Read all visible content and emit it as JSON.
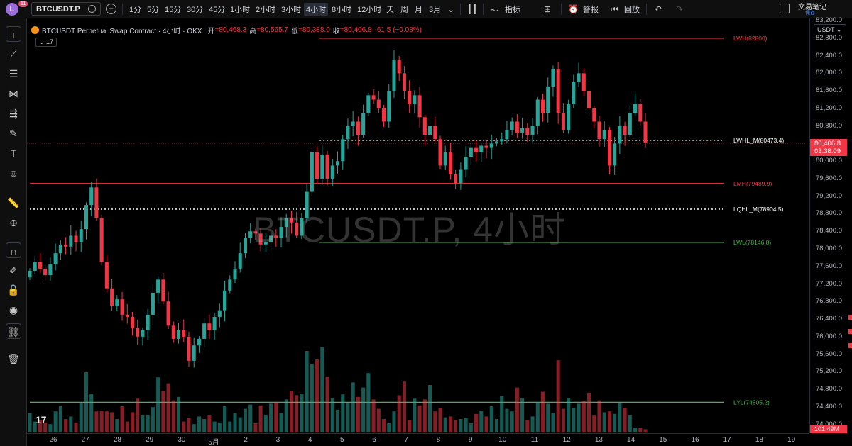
{
  "toolbar": {
    "avatar_letter": "L",
    "notification_count": "11",
    "symbol": "BTCUSDT.P",
    "timeframes": [
      "1分",
      "5分",
      "15分",
      "30分",
      "45分",
      "1小时",
      "2小时",
      "3小时",
      "4小时",
      "8小时",
      "12小时",
      "天",
      "周",
      "月",
      "3月"
    ],
    "active_timeframe": "4小时",
    "indicators_label": "指标",
    "alert_label": "警报",
    "replay_label": "回放",
    "notes_label": "交易笔记",
    "notes_sub": "保存"
  },
  "legend": {
    "title": "BTCUSDT Perpetual Swap Contract · 4小时 · OKX",
    "open_label": "开",
    "open": "=80,468.3",
    "high_label": "高",
    "high": "=80,565.7",
    "low_label": "低",
    "low": "=80,388.0",
    "close_label": "收",
    "close": "=80,406.8",
    "change": "-61.5 (−0.08%)",
    "indicator_count": "17"
  },
  "watermark": "BTCUSDT.P, 4小时",
  "currency": "USDT",
  "current_price": "80,406.8",
  "countdown": "03:38:09",
  "volume_value": "101.49M",
  "colors": {
    "up": "#26a69a",
    "down": "#f23645",
    "level_red": "#f23645",
    "level_green": "#4caf50"
  },
  "price_ticks": [
    "83,200.0",
    "82,800.0",
    "82,400.0",
    "82,000.0",
    "81,600.0",
    "81,200.0",
    "80,800.0",
    "80,000.0",
    "79,600.0",
    "79,200.0",
    "78,800.0",
    "78,400.0",
    "78,000.0",
    "77,600.0",
    "77,200.0",
    "76,800.0",
    "76,400.0",
    "76,000.0",
    "75,600.0",
    "75,200.0",
    "74,800.0",
    "74,400.0",
    "74,000.0"
  ],
  "time_ticks": [
    "26",
    "27",
    "28",
    "29",
    "30",
    "5月",
    "2",
    "3",
    "4",
    "5",
    "6",
    "7",
    "8",
    "9",
    "10",
    "11",
    "12",
    "13",
    "14",
    "15",
    "16",
    "17",
    "18",
    "19"
  ],
  "chart_data": {
    "type": "candlestick",
    "ylim": [
      73800,
      83250
    ],
    "x_domain": [
      25.6,
      19.8
    ],
    "levels": [
      {
        "label": "LWH(82800)",
        "value": 82800,
        "style": "solid",
        "color": "#f23645",
        "x_start": 4.3
      },
      {
        "label": "LWHL_M(80473.4)",
        "value": 80473.4,
        "style": "dotted",
        "color": "#ffffff",
        "x_start": 4.3
      },
      {
        "label": "LMH(79489.9)",
        "value": 79489.9,
        "style": "solid",
        "color": "#f23645",
        "x_start": 25.6
      },
      {
        "label": "LQHL_M(78904.5)",
        "value": 78904.5,
        "style": "dotted",
        "color": "#ffffff",
        "x_start": 25.6
      },
      {
        "label": "LWL(78146.8)",
        "value": 78146.8,
        "style": "solid",
        "color": "#4caf50",
        "x_start": 4.3
      },
      {
        "label": "LYL(74505.2)",
        "value": 74505.2,
        "style": "solid",
        "color": "#4caf50",
        "x_start": 25.6
      }
    ],
    "closes": [
      77500,
      77700,
      77550,
      77400,
      77650,
      77900,
      78100,
      78050,
      78300,
      78150,
      78450,
      79000,
      79400,
      78700,
      77700,
      77100,
      76700,
      76850,
      76500,
      76450,
      76200,
      76000,
      76150,
      76500,
      77000,
      77300,
      76800,
      76250,
      75950,
      76150,
      76000,
      75450,
      75800,
      75950,
      76300,
      76150,
      76450,
      76600,
      77050,
      77300,
      77550,
      77900,
      78250,
      78400,
      78350,
      78100,
      78150,
      78300,
      78250,
      78500,
      78700,
      78600,
      78300,
      78700,
      79300,
      80200,
      79600,
      80150,
      79600,
      79900,
      80000,
      80500,
      80800,
      80900,
      80600,
      81100,
      81500,
      81400,
      81200,
      80900,
      81600,
      82300,
      82000,
      81600,
      81300,
      81500,
      81000,
      80600,
      80800,
      80500,
      79900,
      80200,
      79700,
      79500,
      79800,
      80100,
      80300,
      80200,
      80350,
      80300,
      80400,
      80450,
      80500,
      80700,
      80900,
      80650,
      80750,
      80600,
      80800,
      81400,
      81100,
      81700,
      82100,
      81100,
      80700,
      81300,
      81800,
      82000,
      81600,
      81200,
      80900,
      80500,
      80700,
      79900,
      80400,
      80800,
      80600,
      81100,
      81300,
      80900,
      80406.8
    ],
    "volumes_pct": [
      22,
      12,
      14,
      11,
      9,
      24,
      30,
      15,
      18,
      11,
      34,
      70,
      45,
      24,
      25,
      24,
      23,
      15,
      30,
      12,
      23,
      39,
      20,
      20,
      29,
      64,
      48,
      57,
      37,
      41,
      12,
      16,
      9,
      18,
      15,
      20,
      12,
      11,
      30,
      12,
      22,
      17,
      27,
      32,
      10,
      31,
      20,
      33,
      35,
      22,
      38,
      48,
      43,
      45,
      95,
      80,
      85,
      100,
      65,
      40,
      26,
      44,
      34,
      58,
      41,
      52,
      69,
      38,
      27,
      15,
      10,
      24,
      43,
      59,
      14,
      39,
      31,
      38,
      55,
      24,
      28,
      17,
      18,
      14,
      15,
      16,
      10,
      21,
      25,
      18,
      30,
      15,
      42,
      27,
      24,
      52,
      40,
      14,
      18,
      35,
      47,
      33,
      22,
      84,
      27,
      40,
      28,
      33,
      36,
      46,
      20,
      37,
      23,
      24,
      21,
      34,
      28,
      20,
      5,
      5,
      3
    ]
  }
}
